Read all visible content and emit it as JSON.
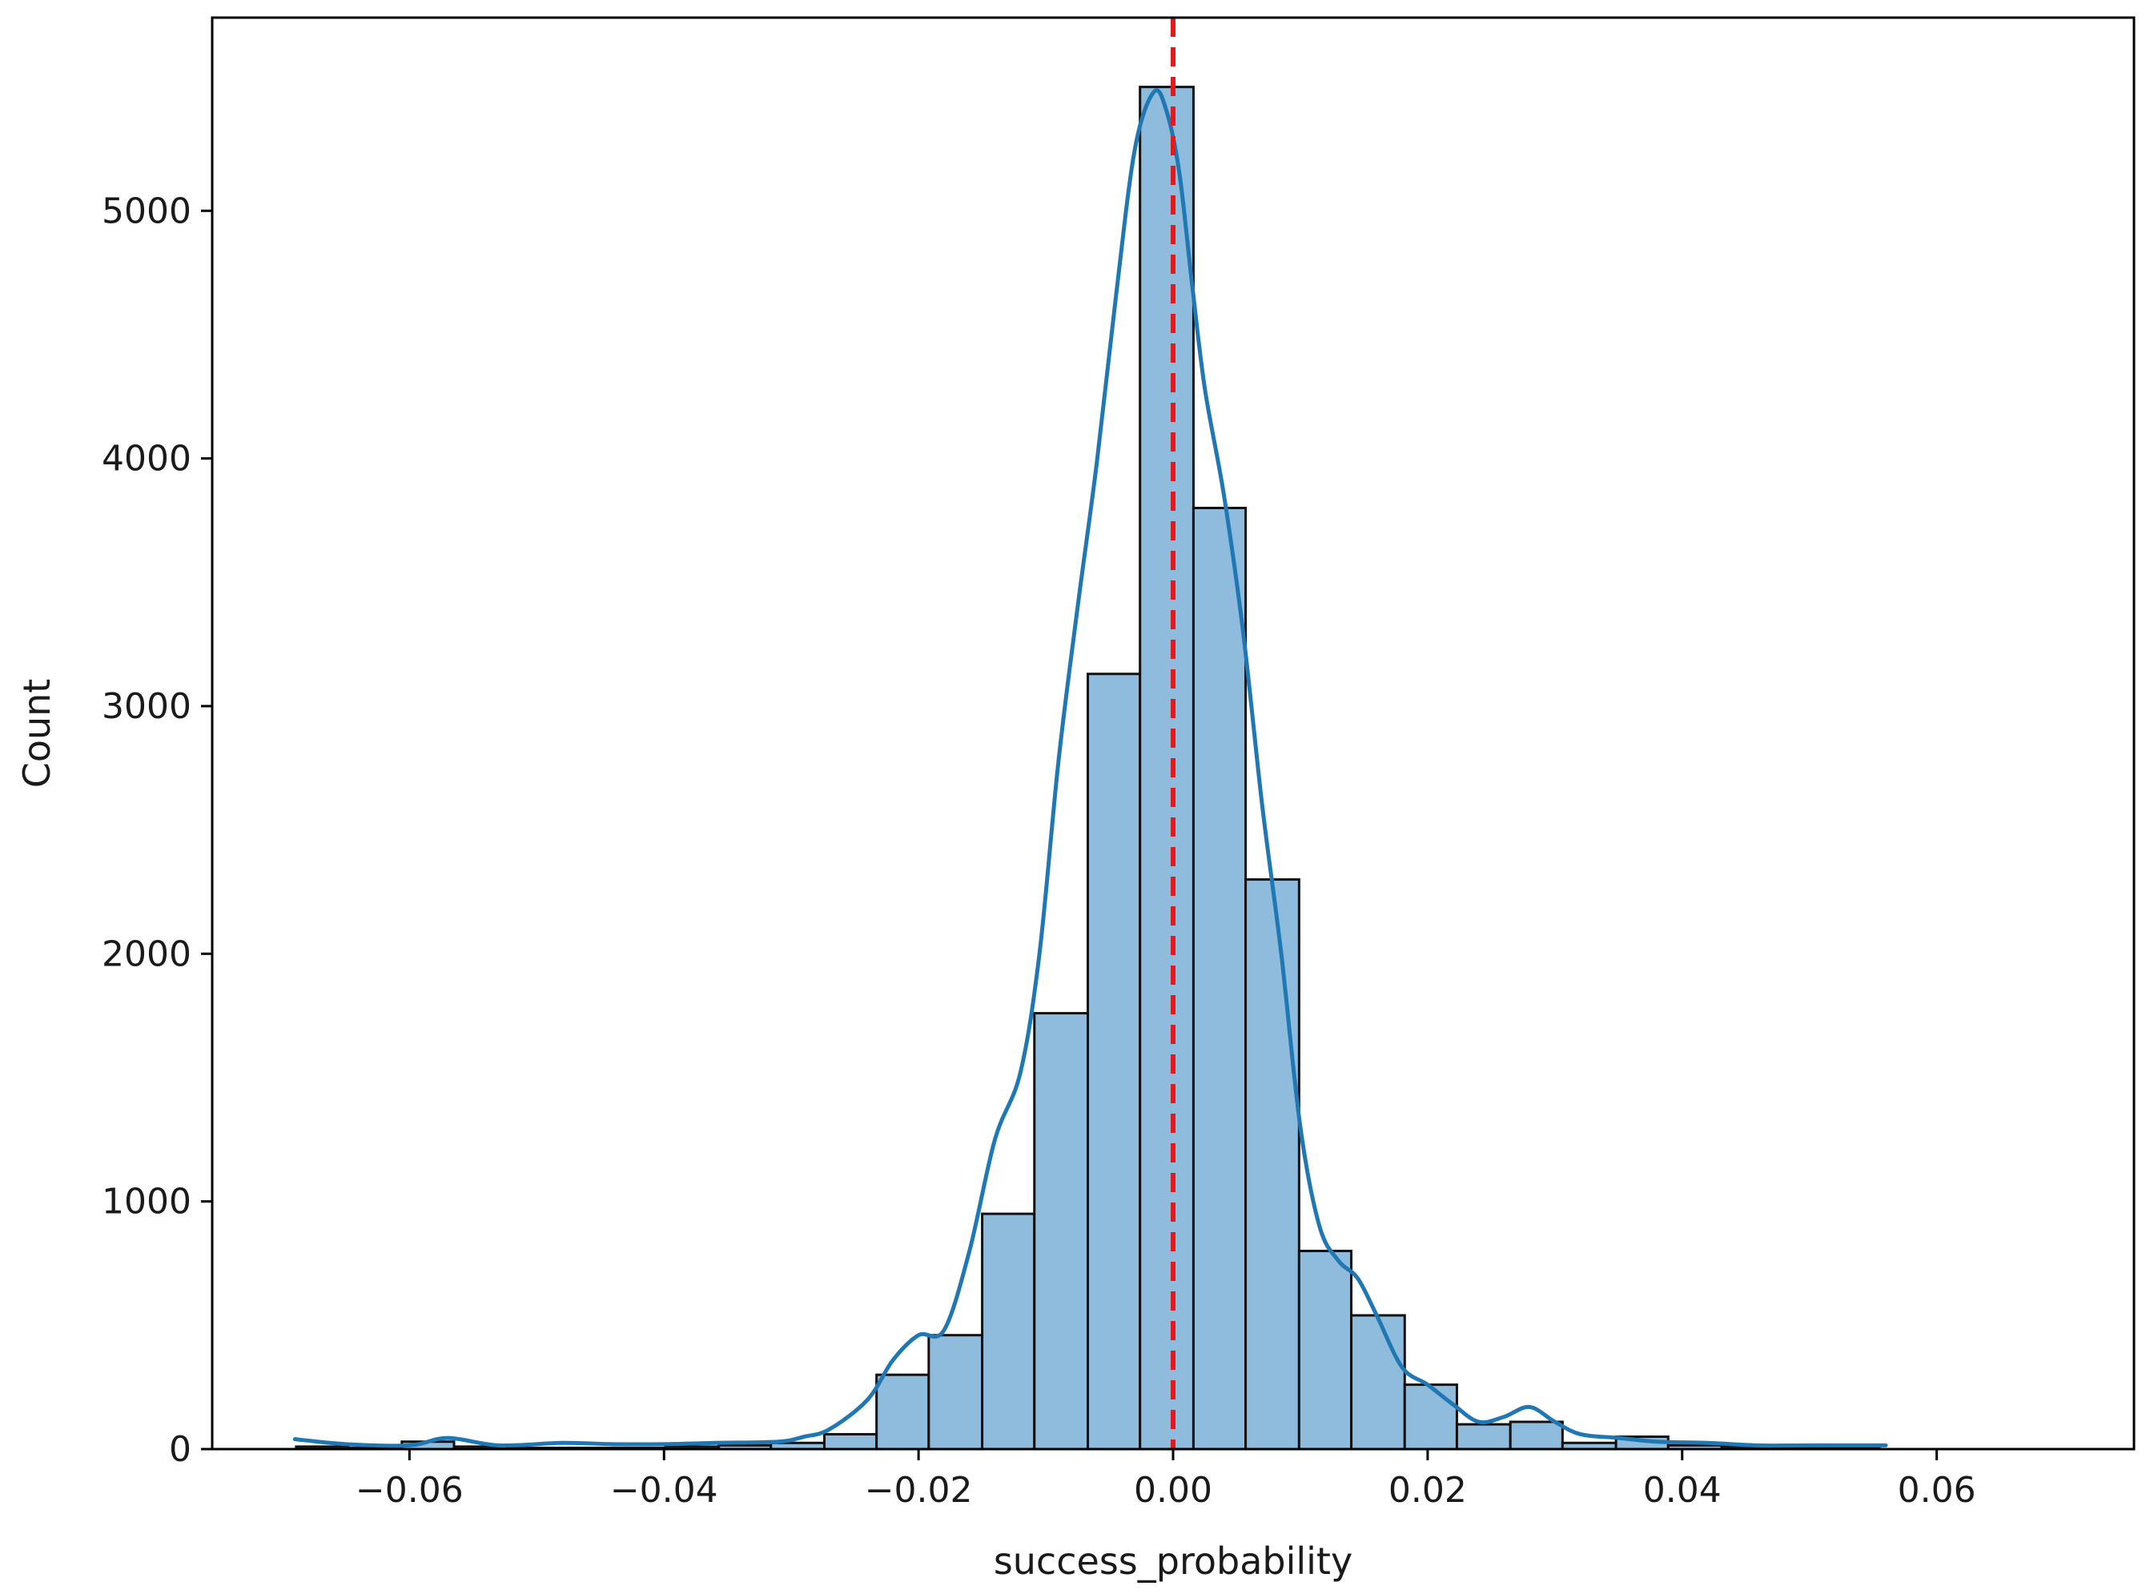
{
  "chart_data": {
    "type": "bar",
    "subtype": "histogram-with-kde",
    "title": "",
    "xlabel": "success_probability",
    "ylabel": "Count",
    "xlim": [
      -0.0755,
      0.0755
    ],
    "ylim": [
      0,
      5780
    ],
    "x_ticks": [
      -0.06,
      -0.04,
      -0.02,
      0.0,
      0.02,
      0.04,
      0.06
    ],
    "x_tick_labels": [
      "−0.06",
      "−0.04",
      "−0.02",
      "0.00",
      "0.02",
      "0.04",
      "0.06"
    ],
    "y_ticks": [
      0,
      1000,
      2000,
      3000,
      4000,
      5000
    ],
    "y_tick_labels": [
      "0",
      "1000",
      "2000",
      "3000",
      "4000",
      "5000"
    ],
    "grid": false,
    "legend": "none",
    "bin_edges": [
      -0.0689,
      -0.0648,
      -0.0606,
      -0.0565,
      -0.0523,
      -0.0482,
      -0.044,
      -0.0399,
      -0.0357,
      -0.0316,
      -0.0274,
      -0.0233,
      -0.0192,
      -0.015,
      -0.0109,
      -0.0067,
      -0.0026,
      0.0016,
      0.0057,
      0.0099,
      0.014,
      0.0182,
      0.0223,
      0.0265,
      0.0306,
      0.0348,
      0.0389,
      0.0431,
      0.0472,
      0.0514,
      0.0555
    ],
    "counts": [
      10,
      5,
      30,
      10,
      5,
      5,
      5,
      10,
      15,
      25,
      60,
      300,
      460,
      950,
      1760,
      3130,
      5500,
      3800,
      2300,
      800,
      540,
      260,
      100,
      110,
      25,
      50,
      15,
      10,
      5,
      5
    ],
    "kde": {
      "x": [
        -0.069,
        -0.065,
        -0.06,
        -0.057,
        -0.053,
        -0.048,
        -0.044,
        -0.04,
        -0.036,
        -0.031,
        -0.029,
        -0.027,
        -0.024,
        -0.022,
        -0.02,
        -0.018,
        -0.016,
        -0.014,
        -0.012,
        -0.0105,
        -0.009,
        -0.0075,
        -0.006,
        -0.0045,
        -0.003,
        -0.0015,
        -0.0005,
        0.0005,
        0.0015,
        0.0025,
        0.004,
        0.0055,
        0.007,
        0.0085,
        0.01,
        0.0115,
        0.013,
        0.0145,
        0.016,
        0.018,
        0.02,
        0.022,
        0.024,
        0.026,
        0.028,
        0.03,
        0.032,
        0.035,
        0.038,
        0.042,
        0.046,
        0.05,
        0.056
      ],
      "y": [
        40,
        20,
        15,
        45,
        15,
        25,
        20,
        20,
        25,
        30,
        50,
        80,
        200,
        360,
        460,
        480,
        800,
        1250,
        1520,
        2000,
        2780,
        3400,
        3980,
        4650,
        5250,
        5480,
        5400,
        5150,
        4700,
        4280,
        3850,
        3300,
        2600,
        2000,
        1300,
        900,
        760,
        690,
        540,
        330,
        260,
        180,
        110,
        130,
        170,
        110,
        60,
        45,
        30,
        25,
        15,
        15,
        15
      ]
    },
    "reference_line": {
      "x": 0.0,
      "color": "#e31a1c",
      "style": "dashed"
    },
    "colors": {
      "bar_fill": "#8fbbdc",
      "bar_edge": "#111111",
      "kde_line": "#1f77b4",
      "reference_line": "#e31a1c"
    }
  }
}
